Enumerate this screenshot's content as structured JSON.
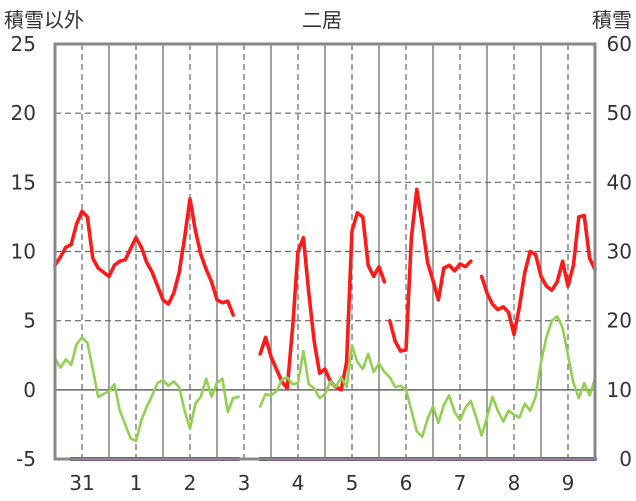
{
  "chart_data": {
    "type": "line",
    "title": "二居",
    "ylabel_left": "積雪以外",
    "ylabel_right": "積雪",
    "ylim_left": [
      -5,
      25
    ],
    "ylim_right": [
      0,
      60
    ],
    "yticks_left": [
      "-5",
      "0",
      "5",
      "10",
      "15",
      "20",
      "25"
    ],
    "yticks_right": [
      "0",
      "10",
      "20",
      "30",
      "40",
      "50",
      "60"
    ],
    "x_range": [
      0,
      10
    ],
    "day_ticks": [
      {
        "x": 0.5,
        "label": "31"
      },
      {
        "x": 1.5,
        "label": "1"
      },
      {
        "x": 2.5,
        "label": "2"
      },
      {
        "x": 3.5,
        "label": "3"
      },
      {
        "x": 4.5,
        "label": "4"
      },
      {
        "x": 5.5,
        "label": "5"
      },
      {
        "x": 6.5,
        "label": "6"
      },
      {
        "x": 7.5,
        "label": "7"
      },
      {
        "x": 8.5,
        "label": "8"
      },
      {
        "x": 9.5,
        "label": "9"
      }
    ],
    "day_boundaries": [
      1,
      2,
      3,
      4,
      5,
      6,
      7,
      8,
      9
    ],
    "grid": true,
    "series": [
      {
        "color": "#ff1a1a",
        "axis": "left",
        "segments": [
          [
            [
              0.0,
              9.0
            ],
            [
              0.1,
              9.6
            ],
            [
              0.2,
              10.3
            ],
            [
              0.3,
              10.5
            ],
            [
              0.4,
              12.0
            ],
            [
              0.5,
              12.9
            ],
            [
              0.6,
              12.5
            ],
            [
              0.7,
              9.5
            ],
            [
              0.8,
              8.8
            ],
            [
              0.9,
              8.5
            ],
            [
              1.0,
              8.2
            ],
            [
              1.1,
              9.0
            ],
            [
              1.2,
              9.3
            ],
            [
              1.3,
              9.4
            ],
            [
              1.4,
              10.2
            ],
            [
              1.5,
              11.0
            ],
            [
              1.6,
              10.3
            ],
            [
              1.7,
              9.2
            ],
            [
              1.8,
              8.5
            ],
            [
              1.9,
              7.5
            ],
            [
              2.0,
              6.5
            ],
            [
              2.1,
              6.2
            ],
            [
              2.2,
              7.0
            ],
            [
              2.3,
              8.5
            ],
            [
              2.4,
              11.0
            ],
            [
              2.5,
              13.8
            ],
            [
              2.6,
              11.5
            ],
            [
              2.7,
              9.8
            ],
            [
              2.8,
              8.7
            ],
            [
              2.9,
              7.8
            ],
            [
              3.0,
              6.5
            ],
            [
              3.1,
              6.3
            ],
            [
              3.2,
              6.4
            ],
            [
              3.3,
              5.4
            ]
          ],
          [
            [
              3.8,
              2.6
            ],
            [
              3.9,
              3.8
            ],
            [
              4.0,
              2.4
            ],
            [
              4.1,
              1.5
            ],
            [
              4.2,
              0.6
            ],
            [
              4.3,
              0.1
            ],
            [
              4.4,
              4.5
            ],
            [
              4.5,
              10.0
            ],
            [
              4.6,
              11.0
            ],
            [
              4.7,
              7.0
            ],
            [
              4.8,
              3.5
            ],
            [
              4.9,
              1.2
            ],
            [
              5.0,
              1.5
            ],
            [
              5.1,
              0.6
            ],
            [
              5.2,
              0.2
            ],
            [
              5.3,
              0.0
            ],
            [
              5.4,
              2.0
            ],
            [
              5.5,
              11.5
            ],
            [
              5.6,
              12.8
            ],
            [
              5.7,
              12.5
            ],
            [
              5.8,
              9.0
            ],
            [
              5.9,
              8.2
            ],
            [
              6.0,
              8.9
            ],
            [
              6.1,
              7.8
            ]
          ],
          [
            [
              6.2,
              5.0
            ],
            [
              6.3,
              3.5
            ],
            [
              6.4,
              2.8
            ],
            [
              6.5,
              2.9
            ],
            [
              6.6,
              11.0
            ],
            [
              6.7,
              14.5
            ],
            [
              6.8,
              12.0
            ],
            [
              6.9,
              9.2
            ],
            [
              7.0,
              7.9
            ],
            [
              7.1,
              6.5
            ],
            [
              7.2,
              8.8
            ],
            [
              7.3,
              9.0
            ],
            [
              7.4,
              8.6
            ],
            [
              7.5,
              9.1
            ],
            [
              7.6,
              8.9
            ],
            [
              7.7,
              9.3
            ]
          ],
          [
            [
              7.9,
              8.2
            ],
            [
              8.0,
              7.0
            ],
            [
              8.1,
              6.2
            ],
            [
              8.2,
              5.8
            ],
            [
              8.3,
              6.0
            ],
            [
              8.4,
              5.6
            ],
            [
              8.5,
              4.0
            ],
            [
              8.6,
              6.0
            ],
            [
              8.7,
              8.5
            ],
            [
              8.8,
              10.0
            ],
            [
              8.9,
              9.8
            ],
            [
              9.0,
              8.2
            ],
            [
              9.1,
              7.5
            ],
            [
              9.2,
              7.2
            ],
            [
              9.3,
              7.8
            ],
            [
              9.4,
              9.3
            ],
            [
              9.5,
              7.5
            ],
            [
              9.6,
              9.0
            ],
            [
              9.7,
              12.5
            ],
            [
              9.8,
              12.6
            ],
            [
              9.9,
              9.5
            ],
            [
              10.0,
              8.7
            ]
          ]
        ]
      },
      {
        "color": "#92d050",
        "axis": "left",
        "segments": [
          [
            [
              0.0,
              2.3
            ],
            [
              0.1,
              1.6
            ],
            [
              0.2,
              2.2
            ],
            [
              0.3,
              1.8
            ],
            [
              0.4,
              3.3
            ],
            [
              0.5,
              3.8
            ],
            [
              0.6,
              3.4
            ],
            [
              0.7,
              1.5
            ],
            [
              0.8,
              -0.5
            ],
            [
              0.9,
              -0.3
            ],
            [
              1.0,
              -0.1
            ],
            [
              1.1,
              0.4
            ],
            [
              1.2,
              -1.5
            ],
            [
              1.3,
              -2.5
            ],
            [
              1.4,
              -3.5
            ],
            [
              1.5,
              -3.7
            ],
            [
              1.6,
              -2.2
            ],
            [
              1.7,
              -1.2
            ],
            [
              1.8,
              -0.4
            ],
            [
              1.9,
              0.5
            ],
            [
              2.0,
              0.7
            ],
            [
              2.1,
              0.3
            ],
            [
              2.2,
              0.6
            ],
            [
              2.3,
              0.2
            ],
            [
              2.4,
              -1.5
            ],
            [
              2.5,
              -2.8
            ],
            [
              2.6,
              -1.0
            ],
            [
              2.7,
              -0.5
            ],
            [
              2.8,
              0.8
            ],
            [
              2.9,
              -0.5
            ],
            [
              3.0,
              0.5
            ],
            [
              3.1,
              0.8
            ],
            [
              3.2,
              -1.6
            ],
            [
              3.3,
              -0.6
            ],
            [
              3.4,
              -0.5
            ]
          ],
          [
            [
              3.8,
              -1.2
            ],
            [
              3.9,
              -0.3
            ],
            [
              4.0,
              -0.4
            ],
            [
              4.1,
              -0.1
            ],
            [
              4.2,
              0.7
            ],
            [
              4.3,
              0.9
            ],
            [
              4.4,
              0.4
            ],
            [
              4.5,
              0.5
            ],
            [
              4.6,
              2.8
            ],
            [
              4.7,
              0.4
            ],
            [
              4.8,
              0.1
            ],
            [
              4.9,
              -0.6
            ],
            [
              5.0,
              -0.3
            ],
            [
              5.1,
              0.6
            ],
            [
              5.2,
              0.2
            ],
            [
              5.3,
              0.9
            ],
            [
              5.4,
              0.2
            ],
            [
              5.5,
              3.2
            ],
            [
              5.6,
              2.0
            ],
            [
              5.7,
              1.5
            ],
            [
              5.8,
              2.6
            ],
            [
              5.9,
              1.3
            ],
            [
              6.0,
              1.9
            ],
            [
              6.1,
              1.3
            ],
            [
              6.2,
              0.9
            ],
            [
              6.3,
              0.2
            ],
            [
              6.4,
              0.3
            ],
            [
              6.5,
              0.0
            ],
            [
              6.6,
              -1.5
            ],
            [
              6.7,
              -3.0
            ],
            [
              6.8,
              -3.4
            ],
            [
              6.9,
              -2.1
            ],
            [
              7.0,
              -1.2
            ],
            [
              7.1,
              -2.4
            ],
            [
              7.2,
              -1.1
            ],
            [
              7.3,
              -0.4
            ],
            [
              7.4,
              -1.6
            ],
            [
              7.5,
              -2.2
            ],
            [
              7.6,
              -1.3
            ],
            [
              7.7,
              -0.8
            ],
            [
              7.8,
              -2.0
            ],
            [
              7.9,
              -3.3
            ],
            [
              8.0,
              -2.0
            ],
            [
              8.1,
              -0.5
            ],
            [
              8.2,
              -1.5
            ],
            [
              8.3,
              -2.3
            ],
            [
              8.4,
              -1.5
            ],
            [
              8.5,
              -1.8
            ],
            [
              8.6,
              -2.0
            ],
            [
              8.7,
              -1.0
            ],
            [
              8.8,
              -1.5
            ],
            [
              8.9,
              -0.5
            ],
            [
              9.0,
              2.0
            ],
            [
              9.1,
              3.8
            ],
            [
              9.2,
              5.0
            ],
            [
              9.3,
              5.3
            ],
            [
              9.4,
              4.5
            ],
            [
              9.5,
              2.5
            ],
            [
              9.6,
              0.5
            ],
            [
              9.7,
              -0.6
            ],
            [
              9.8,
              0.5
            ],
            [
              9.9,
              -0.4
            ],
            [
              10.0,
              0.8
            ]
          ]
        ]
      },
      {
        "color": "#7030a0",
        "axis": "right",
        "segments": [
          [
            [
              0.3,
              0.0
            ],
            [
              3.4,
              0.0
            ]
          ],
          [
            [
              3.8,
              0.0
            ],
            [
              10.0,
              0.0
            ]
          ]
        ]
      }
    ]
  }
}
